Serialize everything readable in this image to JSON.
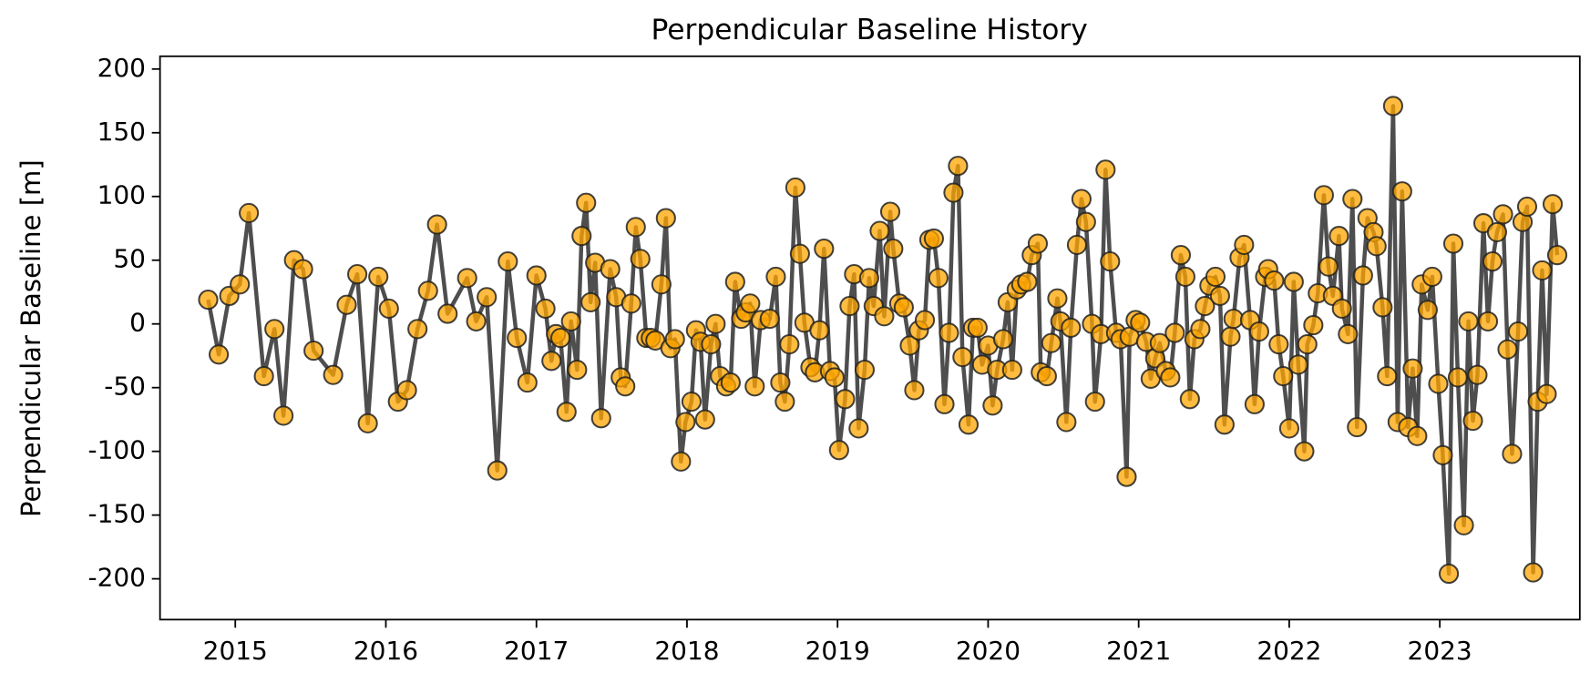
{
  "chart_data": {
    "type": "line",
    "title": "Perpendicular Baseline History",
    "y_label": "Perpendicular Baseline [m]",
    "marker_color": "#FFA500",
    "line_color": "#444444",
    "xlim": [
      2014.5,
      2023.93
    ],
    "xticks": [
      2015,
      2016,
      2017,
      2018,
      2019,
      2020,
      2021,
      2022,
      2023
    ],
    "ylim": [
      -232,
      210
    ],
    "yticks": [
      -200,
      -150,
      -100,
      -50,
      0,
      50,
      100,
      150,
      200
    ],
    "grid": false,
    "x": [
      2014.82,
      2014.89,
      2014.96,
      2015.03,
      2015.09,
      2015.19,
      2015.26,
      2015.32,
      2015.39,
      2015.45,
      2015.52,
      2015.65,
      2015.74,
      2015.81,
      2015.88,
      2015.95,
      2016.02,
      2016.08,
      2016.14,
      2016.21,
      2016.28,
      2016.34,
      2016.41,
      2016.54,
      2016.6,
      2016.67,
      2016.74,
      2016.81,
      2016.87,
      2016.94,
      2017.0,
      2017.06,
      2017.1,
      2017.13,
      2017.16,
      2017.2,
      2017.23,
      2017.27,
      2017.3,
      2017.33,
      2017.36,
      2017.39,
      2017.43,
      2017.49,
      2017.53,
      2017.56,
      2017.59,
      2017.63,
      2017.66,
      2017.69,
      2017.73,
      2017.76,
      2017.79,
      2017.83,
      2017.86,
      2017.89,
      2017.92,
      2017.96,
      2017.99,
      2018.03,
      2018.06,
      2018.09,
      2018.12,
      2018.16,
      2018.19,
      2018.22,
      2018.26,
      2018.29,
      2018.32,
      2018.36,
      2018.39,
      2018.42,
      2018.45,
      2018.49,
      2018.55,
      2018.59,
      2018.62,
      2018.65,
      2018.68,
      2018.72,
      2018.75,
      2018.78,
      2018.82,
      2018.85,
      2018.88,
      2018.91,
      2018.95,
      2018.98,
      2019.01,
      2019.05,
      2019.08,
      2019.11,
      2019.14,
      2019.18,
      2019.21,
      2019.24,
      2019.28,
      2019.31,
      2019.35,
      2019.37,
      2019.41,
      2019.44,
      2019.48,
      2019.51,
      2019.54,
      2019.58,
      2019.61,
      2019.64,
      2019.67,
      2019.71,
      2019.74,
      2019.77,
      2019.8,
      2019.83,
      2019.87,
      2019.9,
      2019.93,
      2019.96,
      2020.0,
      2020.03,
      2020.06,
      2020.1,
      2020.13,
      2020.16,
      2020.19,
      2020.22,
      2020.26,
      2020.29,
      2020.33,
      2020.35,
      2020.39,
      2020.42,
      2020.46,
      2020.48,
      2020.52,
      2020.55,
      2020.59,
      2020.62,
      2020.65,
      2020.69,
      2020.71,
      2020.75,
      2020.78,
      2020.81,
      2020.85,
      2020.88,
      2020.92,
      2020.94,
      2020.98,
      2021.01,
      2021.05,
      2021.08,
      2021.11,
      2021.14,
      2021.18,
      2021.21,
      2021.24,
      2021.28,
      2021.31,
      2021.34,
      2021.37,
      2021.41,
      2021.44,
      2021.47,
      2021.51,
      2021.54,
      2021.57,
      2021.61,
      2021.63,
      2021.67,
      2021.7,
      2021.74,
      2021.77,
      2021.8,
      2021.84,
      2021.86,
      2021.9,
      2021.93,
      2021.96,
      2022.0,
      2022.03,
      2022.06,
      2022.1,
      2022.12,
      2022.16,
      2022.19,
      2022.23,
      2022.26,
      2022.29,
      2022.33,
      2022.35,
      2022.39,
      2022.42,
      2022.45,
      2022.49,
      2022.52,
      2022.56,
      2022.58,
      2022.62,
      2022.65,
      2022.69,
      2022.72,
      2022.75,
      2022.79,
      2022.82,
      2022.85,
      2022.88,
      2022.92,
      2022.95,
      2022.99,
      2023.02,
      2023.06,
      2023.09,
      2023.12,
      2023.16,
      2023.19,
      2023.22,
      2023.25,
      2023.29,
      2023.32,
      2023.35,
      2023.38,
      2023.42,
      2023.45,
      2023.48,
      2023.52,
      2023.55,
      2023.58,
      2023.62,
      2023.65,
      2023.68,
      2023.71,
      2023.75,
      2023.78
    ],
    "values": [
      19,
      -24,
      22,
      31,
      87,
      -41,
      -4,
      -72,
      50,
      43,
      -21,
      -40,
      15,
      39,
      -78,
      37,
      12,
      -61,
      -52,
      -4,
      26,
      78,
      8,
      36,
      2,
      21,
      -115,
      49,
      -11,
      -46,
      38,
      12,
      -29,
      -8,
      -11,
      -69,
      2,
      -36,
      69,
      95,
      17,
      48,
      -74,
      43,
      21,
      -42,
      -49,
      16,
      76,
      51,
      -11,
      -11,
      -13,
      31,
      83,
      -19,
      -12,
      -108,
      -77,
      -61,
      -5,
      -14,
      -75,
      -16,
      0,
      -41,
      -49,
      -46,
      33,
      4,
      9,
      16,
      -49,
      3,
      4,
      37,
      -46,
      -61,
      -16,
      107,
      55,
      1,
      -34,
      -38,
      -5,
      59,
      -37,
      -42,
      -99,
      -59,
      14,
      39,
      -82,
      -36,
      36,
      14,
      73,
      6,
      88,
      59,
      16,
      13,
      -17,
      -52,
      -5,
      3,
      66,
      67,
      36,
      -63,
      -7,
      103,
      124,
      -26,
      -79,
      -3,
      -3,
      -32,
      -17,
      -64,
      -36,
      -12,
      17,
      -36,
      27,
      31,
      33,
      54,
      63,
      -38,
      -41,
      -15,
      20,
      2,
      -77,
      -3,
      62,
      98,
      80,
      0,
      -61,
      -8,
      121,
      49,
      -7,
      -12,
      -120,
      -10,
      3,
      1,
      -14,
      -43,
      -27,
      -15,
      -37,
      -42,
      -7,
      54,
      37,
      -59,
      -12,
      -4,
      14,
      30,
      37,
      22,
      -79,
      -10,
      4,
      52,
      62,
      3,
      -63,
      -6,
      37,
      43,
      34,
      -16,
      -41,
      -82,
      33,
      -32,
      -100,
      -16,
      -1,
      24,
      101,
      45,
      22,
      69,
      12,
      -8,
      98,
      -81,
      38,
      83,
      72,
      61,
      13,
      -41,
      171,
      -77,
      104,
      -81,
      -35,
      -88,
      31,
      11,
      37,
      -47,
      -103,
      -196,
      63,
      -42,
      -158,
      2,
      -76,
      -40,
      79,
      2,
      49,
      72,
      86,
      -20,
      -102,
      -6,
      80,
      92,
      -195,
      -61,
      42,
      -55,
      94,
      54
    ]
  }
}
